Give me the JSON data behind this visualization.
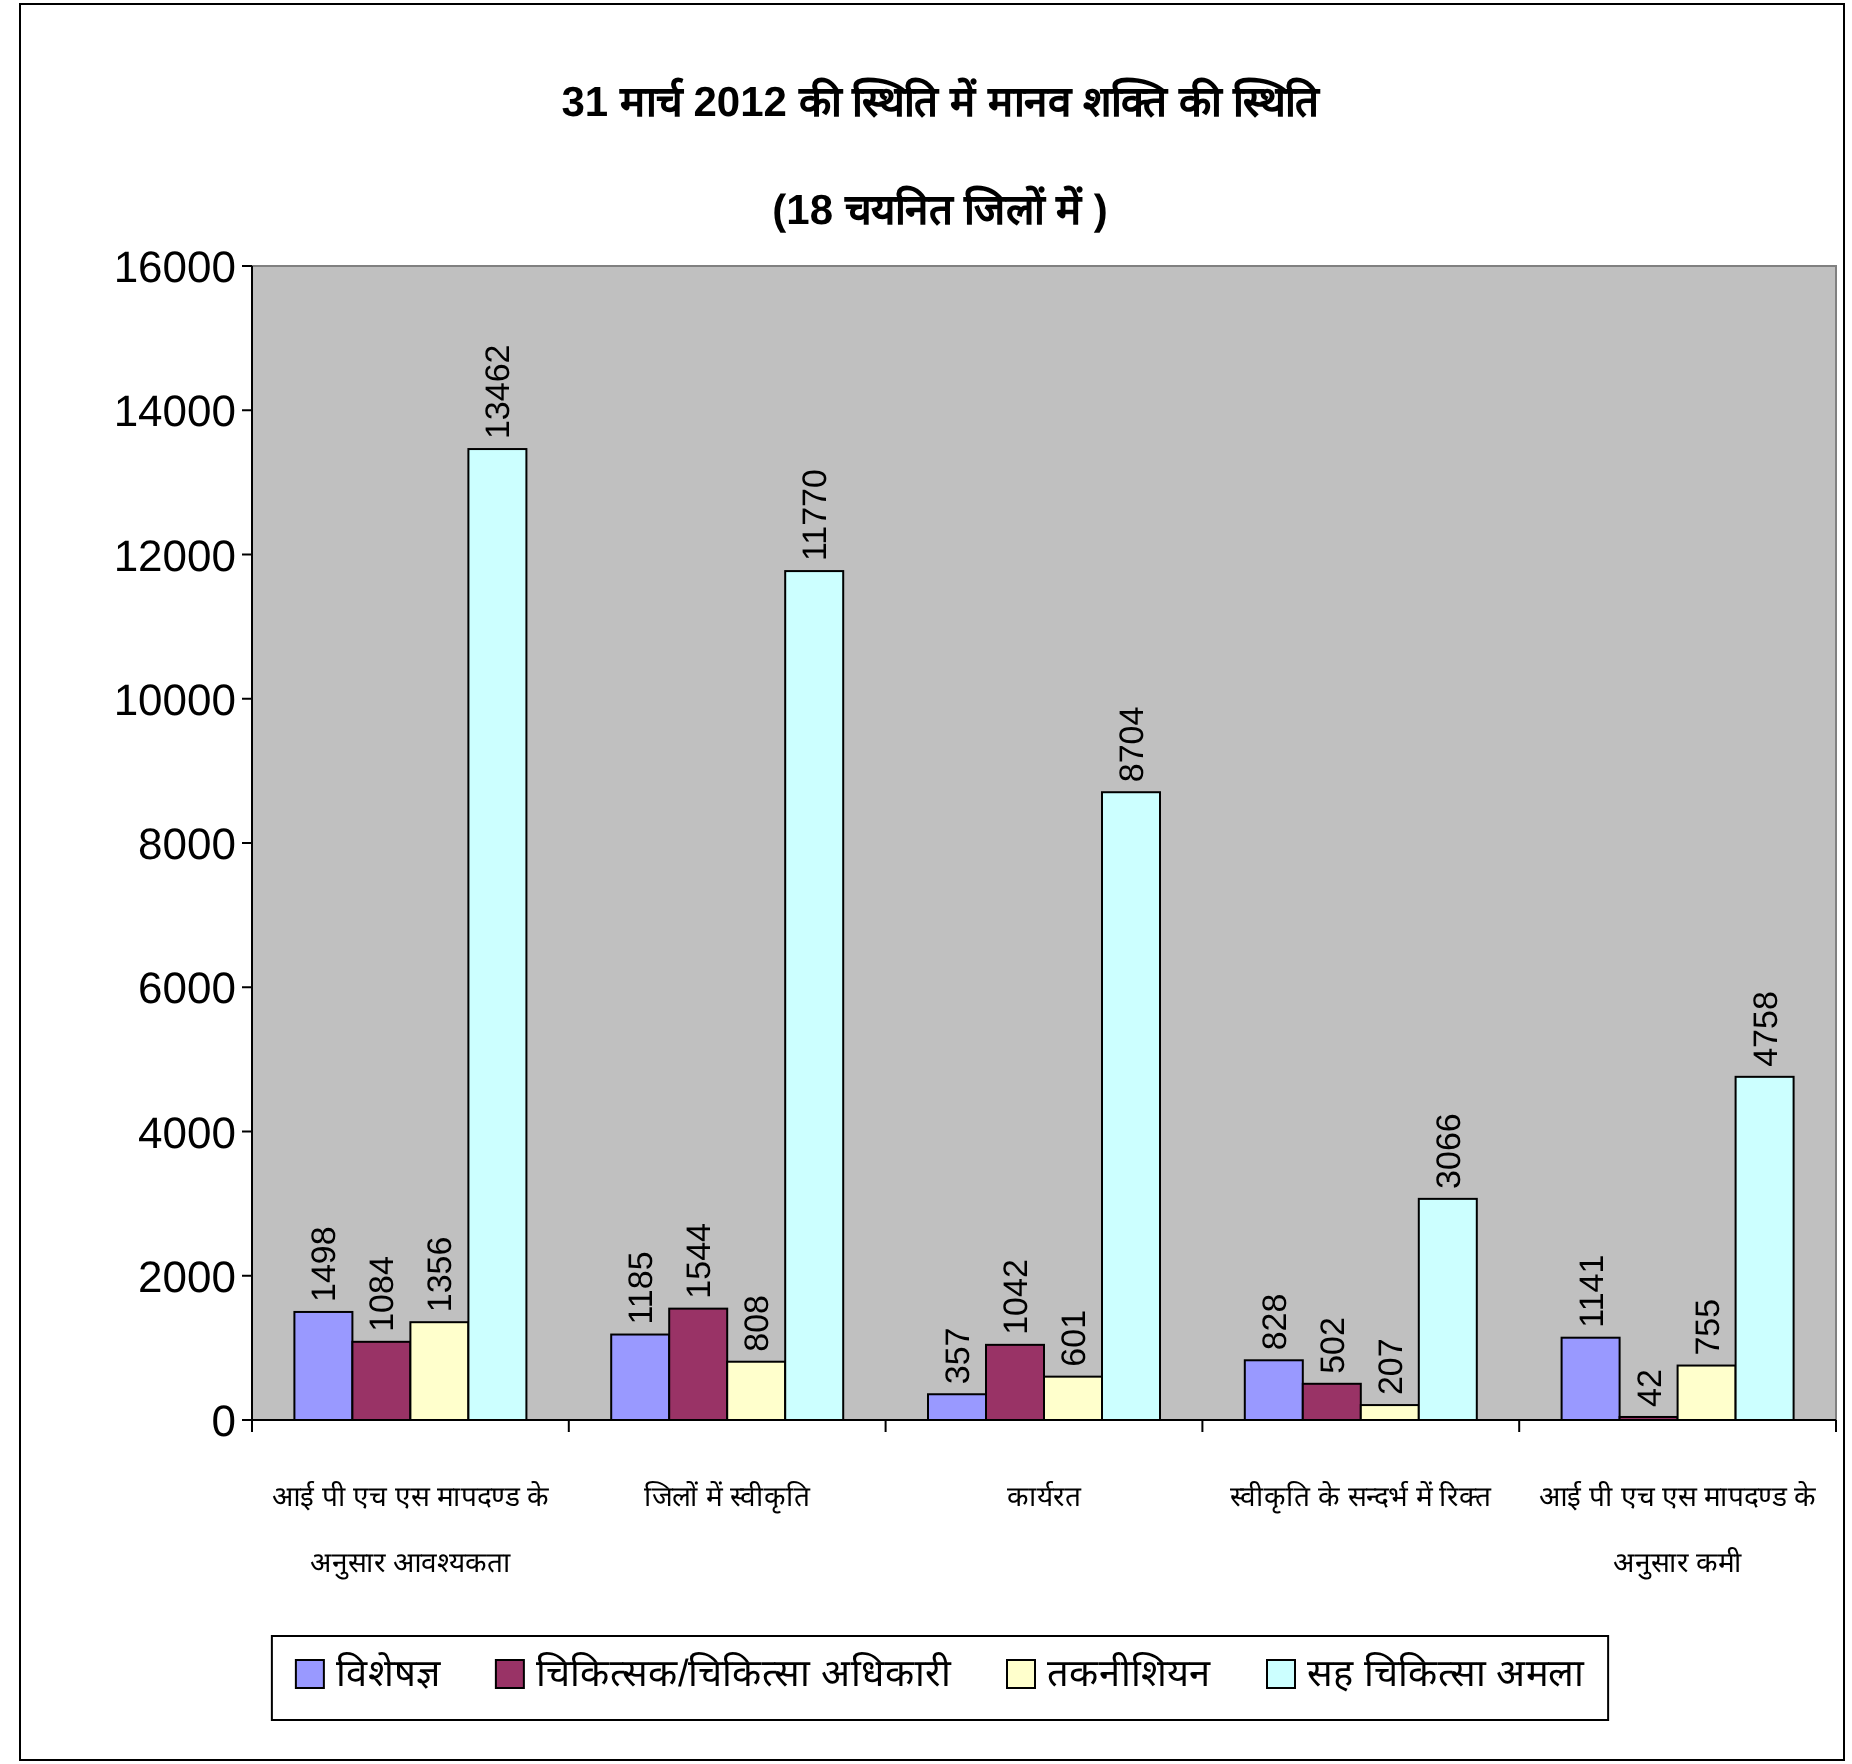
{
  "chart_data": {
    "type": "bar",
    "title": "31 मार्च 2012 की स्थिति में मानव शक्ति की स्थिति",
    "subtitle": "(18 चयनित जिलों में )",
    "categories": [
      "आई पी एच एस मापदण्ड के अनुसार आवश्यकता",
      "जिलों में स्वीकृति",
      "कार्यरत",
      "स्वीकृति के सन्दर्भ में रिक्त",
      "आई पी एच एस मापदण्ड के अनुसार कमी"
    ],
    "series": [
      {
        "name": "विशेषज्ञ",
        "color": "#9999ff",
        "values": [
          1498,
          1185,
          357,
          828,
          1141
        ]
      },
      {
        "name": "चिकित्सक/चिकित्सा अधिकारी",
        "color": "#993366",
        "values": [
          1084,
          1544,
          1042,
          502,
          42
        ]
      },
      {
        "name": "तकनीशियन",
        "color": "#ffffcc",
        "values": [
          1356,
          808,
          601,
          207,
          755
        ]
      },
      {
        "name": "सह चिकित्सा अमला",
        "color": "#ccffff",
        "values": [
          13462,
          11770,
          8704,
          3066,
          4758
        ]
      }
    ],
    "ylim": [
      0,
      16000
    ],
    "yticks": [
      0,
      2000,
      4000,
      6000,
      8000,
      10000,
      12000,
      14000,
      16000
    ],
    "data_labels": true,
    "legend": "bottom",
    "grid": false
  }
}
